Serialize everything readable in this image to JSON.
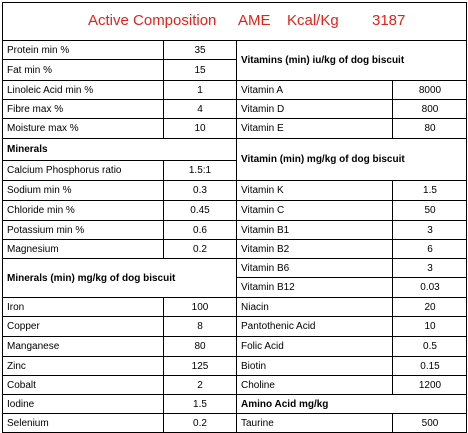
{
  "title": {
    "text": "Active Composition",
    "measure": "AME",
    "unit": "Kcal/Kg",
    "value": "3187"
  },
  "left": [
    {
      "label": "Protein min %",
      "value": "35"
    },
    {
      "label": "Fat min %",
      "value": "15"
    },
    {
      "label": "Linoleic Acid min %",
      "value": "1"
    },
    {
      "label": "Fibre max %",
      "value": "4"
    },
    {
      "label": "Moisture max %",
      "value": "10"
    },
    {
      "header": "Minerals"
    },
    {
      "label": "Calcium Phosphorus ratio",
      "value": "1.5:1"
    },
    {
      "label": "Sodium min %",
      "value": "0.3"
    },
    {
      "label": "Chloride min %",
      "value": "0.45"
    },
    {
      "label": "Potassium min %",
      "value": "0.6"
    },
    {
      "label": "Magnesium",
      "value": "0.2"
    },
    {
      "header": "Minerals (min) mg/kg of dog biscuit"
    },
    {
      "label": "Iron",
      "value": "100"
    },
    {
      "label": "Copper",
      "value": "8"
    },
    {
      "label": "Manganese",
      "value": "80"
    },
    {
      "label": "Zinc",
      "value": "125"
    },
    {
      "label": "Cobalt",
      "value": "2"
    },
    {
      "label": "Iodine",
      "value": "1.5"
    },
    {
      "label": "Selenium",
      "value": "0.2"
    }
  ],
  "right": [
    {
      "header": "Vitamins (min) iu/kg of dog biscuit"
    },
    {
      "label": "Vitamin A",
      "value": "8000"
    },
    {
      "label": "Vitamin D",
      "value": "800"
    },
    {
      "label": "Vitamin E",
      "value": "80"
    },
    {
      "header": "Vitamin (min) mg/kg of dog biscuit"
    },
    {
      "label": "Vitamin K",
      "value": "1.5"
    },
    {
      "label": "Vitamin C",
      "value": "50"
    },
    {
      "label": "Vitamin B1",
      "value": "3"
    },
    {
      "label": "Vitamin B2",
      "value": "6"
    },
    {
      "label": "Vitamin B6",
      "value": "3"
    },
    {
      "label": "Vitamin B12",
      "value": "0.03"
    },
    {
      "label": "Niacin",
      "value": "20"
    },
    {
      "label": "Pantothenic Acid",
      "value": "10"
    },
    {
      "label": "Folic Acid",
      "value": "0.5"
    },
    {
      "label": "Biotin",
      "value": "0.15"
    },
    {
      "label": "Choline",
      "value": "1200"
    },
    {
      "header": "Amino Acid mg/kg"
    },
    {
      "label": "Taurine",
      "value": "500"
    }
  ]
}
